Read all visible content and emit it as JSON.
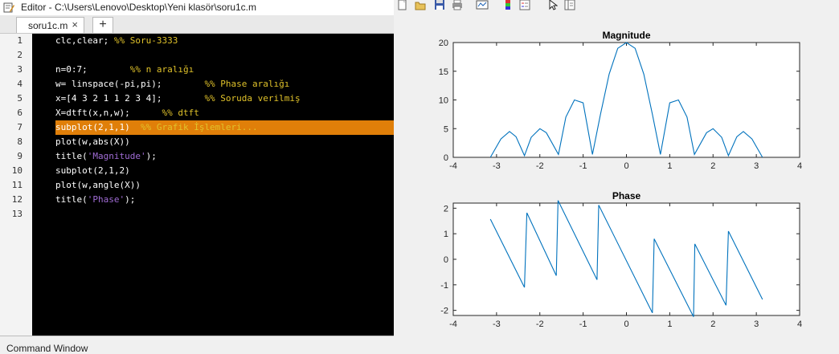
{
  "editor": {
    "title": "Editor - C:\\Users\\Lenovo\\Desktop\\Yeni klasör\\soru1c.m",
    "tab_label": "soru1c.m",
    "tab_close": "×",
    "add_tab": "+",
    "lines": [
      {
        "num": "1",
        "parts": [
          {
            "t": "clc,clear; ",
            "c": "code"
          },
          {
            "t": "%% Soru-3333",
            "c": "comment"
          }
        ]
      },
      {
        "num": "2",
        "parts": []
      },
      {
        "num": "3",
        "parts": [
          {
            "t": "n=0:7;        ",
            "c": "code"
          },
          {
            "t": "%% n aralığı",
            "c": "comment"
          }
        ]
      },
      {
        "num": "4",
        "parts": [
          {
            "t": "w= linspace(-pi,pi);        ",
            "c": "code"
          },
          {
            "t": "%% Phase aralığı",
            "c": "comment"
          }
        ]
      },
      {
        "num": "5",
        "parts": [
          {
            "t": "x=[4 3 2 1 1 2 3 4];        ",
            "c": "code"
          },
          {
            "t": "%% Soruda verilmiş",
            "c": "comment"
          }
        ]
      },
      {
        "num": "6",
        "parts": [
          {
            "t": "X=dtft(x,n,w);      ",
            "c": "code"
          },
          {
            "t": "%% dtft",
            "c": "comment"
          }
        ]
      },
      {
        "num": "7",
        "parts": [
          {
            "t": "subplot(2,1,1)  ",
            "c": "code"
          },
          {
            "t": "%% Grafik İşlemleri...",
            "c": "comment"
          }
        ]
      },
      {
        "num": "8",
        "parts": [
          {
            "t": "plot(w,abs(X))",
            "c": "code"
          }
        ]
      },
      {
        "num": "9",
        "parts": [
          {
            "t": "title(",
            "c": "code"
          },
          {
            "t": "'Magnitude'",
            "c": "string"
          },
          {
            "t": ");",
            "c": "code"
          }
        ]
      },
      {
        "num": "10",
        "parts": [
          {
            "t": "subplot(2,1,2)",
            "c": "code"
          }
        ]
      },
      {
        "num": "11",
        "parts": [
          {
            "t": "plot(w,angle(X))",
            "c": "code"
          }
        ]
      },
      {
        "num": "12",
        "parts": [
          {
            "t": "title(",
            "c": "code"
          },
          {
            "t": "'Phase'",
            "c": "string"
          },
          {
            "t": ");",
            "c": "code"
          }
        ]
      },
      {
        "num": "13",
        "parts": []
      }
    ],
    "highlighted_line": 7
  },
  "command_window": {
    "label": "Command Window"
  },
  "figure_toolbar": {
    "icons": [
      "new-figure-icon",
      "open-file-icon",
      "save-icon",
      "print-icon",
      "link-plot-icon",
      "insert-colorbar-icon",
      "insert-legend-icon",
      "pointer-icon",
      "property-editor-icon"
    ]
  },
  "colors": {
    "editor_bg": "#000000",
    "code_text": "#ffffff",
    "comment": "#e0c22a",
    "string": "#a06cd5",
    "highlight": "#e07f09",
    "plot_line": "#0072bd"
  },
  "chart_data": [
    {
      "type": "line",
      "title": "Magnitude",
      "xlim": [
        -4,
        4
      ],
      "ylim": [
        0,
        20
      ],
      "xticks": [
        -4,
        -3,
        -2,
        -1,
        0,
        1,
        2,
        3,
        4
      ],
      "yticks": [
        0,
        5,
        10,
        15,
        20
      ],
      "grid": false,
      "series": [
        {
          "x": [
            -3.1416,
            -2.9,
            -2.7,
            -2.55,
            -2.356,
            -2.2,
            -2.0,
            -1.85,
            -1.571,
            -1.4,
            -1.2,
            -1.0,
            -0.785,
            -0.6,
            -0.4,
            -0.2,
            0.0,
            0.2,
            0.4,
            0.6,
            0.785,
            1.0,
            1.2,
            1.4,
            1.571,
            1.85,
            2.0,
            2.2,
            2.356,
            2.55,
            2.7,
            2.9,
            3.1416
          ],
          "y": [
            0.0,
            3.2,
            4.5,
            3.6,
            0.3,
            3.5,
            5.0,
            4.3,
            0.5,
            7.0,
            10.0,
            9.5,
            0.5,
            7.5,
            14.5,
            19.0,
            20.0,
            19.0,
            14.5,
            7.5,
            0.5,
            9.5,
            10.0,
            7.0,
            0.5,
            4.3,
            5.0,
            3.5,
            0.3,
            3.6,
            4.5,
            3.2,
            0.0
          ]
        }
      ]
    },
    {
      "type": "line",
      "title": "Phase",
      "xlim": [
        -4,
        4
      ],
      "ylim": [
        -2.2,
        2.2
      ],
      "xticks": [
        -4,
        -3,
        -2,
        -1,
        0,
        1,
        2,
        3,
        4
      ],
      "yticks": [
        -2,
        -1,
        0,
        1,
        2
      ],
      "grid": false,
      "series": [
        {
          "x": [
            -3.1416,
            -2.356,
            -2.3,
            -1.62,
            -1.58,
            -0.68,
            -0.64,
            0.6,
            0.64,
            1.55,
            1.58,
            2.3,
            2.356,
            3.1416
          ],
          "y": [
            1.57,
            -1.1,
            1.82,
            -0.64,
            2.3,
            -0.8,
            2.12,
            -2.1,
            0.8,
            -2.25,
            0.6,
            -1.8,
            1.1,
            -1.57
          ]
        }
      ]
    }
  ]
}
